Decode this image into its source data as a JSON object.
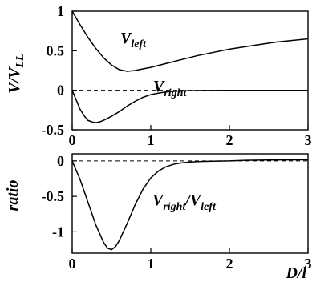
{
  "chart_data": [
    {
      "type": "line",
      "ylabel_main": "V/V",
      "ylabel_sub": "LL",
      "xlim": [
        0,
        3
      ],
      "ylim": [
        -0.5,
        1
      ],
      "xticks": [
        "0",
        "1",
        "2",
        "3"
      ],
      "yticks": [
        "1",
        "0.5",
        "0",
        "-0.5"
      ],
      "series": [
        {
          "name": "left",
          "x": [
            0,
            0.1,
            0.2,
            0.3,
            0.4,
            0.5,
            0.6,
            0.7,
            0.8,
            0.9,
            1.0,
            1.2,
            1.4,
            1.6,
            1.8,
            2.0,
            2.2,
            2.4,
            2.6,
            2.8,
            3.0
          ],
          "y": [
            1.0,
            0.83,
            0.67,
            0.53,
            0.41,
            0.32,
            0.26,
            0.24,
            0.25,
            0.27,
            0.29,
            0.34,
            0.39,
            0.44,
            0.48,
            0.52,
            0.55,
            0.58,
            0.61,
            0.63,
            0.65
          ]
        },
        {
          "name": "right",
          "x": [
            0,
            0.05,
            0.1,
            0.15,
            0.2,
            0.25,
            0.3,
            0.35,
            0.4,
            0.5,
            0.6,
            0.7,
            0.8,
            0.9,
            1.0,
            1.1,
            1.2,
            1.3,
            1.4,
            1.5,
            1.7,
            2.0,
            2.5,
            3.0
          ],
          "y": [
            0.0,
            -0.12,
            -0.24,
            -0.32,
            -0.38,
            -0.4,
            -0.41,
            -0.4,
            -0.38,
            -0.33,
            -0.27,
            -0.2,
            -0.14,
            -0.09,
            -0.055,
            -0.035,
            -0.02,
            -0.012,
            -0.007,
            -0.004,
            -0.002,
            -0.001,
            0.0,
            0.0
          ]
        }
      ],
      "labels": [
        {
          "main": "V",
          "sub": "left"
        },
        {
          "main": "V",
          "sub": "right"
        }
      ]
    },
    {
      "type": "line",
      "ylabel": "ratio",
      "xlabel": "D/l",
      "xlim": [
        0,
        3
      ],
      "ylim": [
        -1.3,
        0.1
      ],
      "xticks": [
        "0",
        "1",
        "2",
        "3"
      ],
      "yticks": [
        "0",
        "-0.5",
        "-1"
      ],
      "series": [
        {
          "name": "right/left",
          "x": [
            0,
            0.1,
            0.2,
            0.3,
            0.4,
            0.45,
            0.5,
            0.55,
            0.6,
            0.7,
            0.8,
            0.9,
            1.0,
            1.1,
            1.2,
            1.3,
            1.4,
            1.5,
            1.6,
            1.8,
            2.0,
            2.2,
            2.5,
            3.0
          ],
          "y": [
            0.0,
            -0.26,
            -0.58,
            -0.9,
            -1.15,
            -1.23,
            -1.25,
            -1.21,
            -1.12,
            -0.88,
            -0.62,
            -0.4,
            -0.24,
            -0.14,
            -0.08,
            -0.045,
            -0.027,
            -0.016,
            -0.01,
            -0.004,
            0.0,
            0.008,
            0.012,
            0.015
          ]
        }
      ],
      "label": {
        "a": "V",
        "a_sub": "right",
        "sep": "/V",
        "b_sub": "left"
      }
    }
  ]
}
